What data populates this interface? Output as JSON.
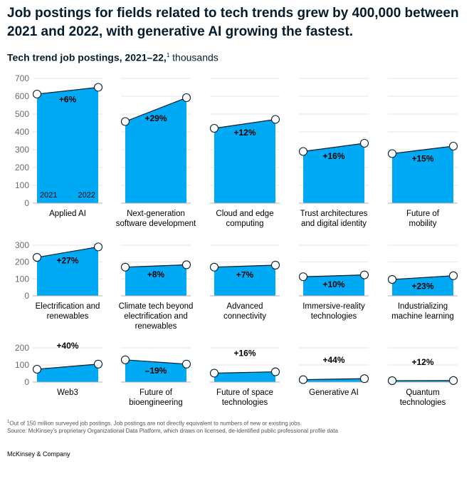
{
  "title": "Job postings for fields related to tech trends grew by 400,000 between 2021 and 2022, with generative AI growing the fastest.",
  "subtitle": {
    "bold": "Tech trend job postings, 2021–22,",
    "sup": "1",
    "unit": " thousands"
  },
  "footnote": {
    "sup": "1",
    "note": "Out of 150 million surveyed job postings. Job postings are not directly equivalent to numbers of new or existing jobs.",
    "source": "Source: McKinsey’s proprietary Organizational Data Platform, which draws on licensed, de-identified public professional profile data"
  },
  "brand": "McKinsey & Company",
  "colors": {
    "fill": "#00a9f4",
    "line": "#051c2c",
    "grid": "#e6e6e6",
    "axis": "#b0b0b0"
  },
  "chart_data": {
    "type": "area",
    "x": [
      "2021",
      "2022"
    ],
    "rows": [
      {
        "yticks": [
          0,
          100,
          200,
          300,
          400,
          500,
          600,
          700
        ],
        "ylim": [
          0,
          700
        ]
      },
      {
        "yticks": [
          0,
          100,
          200,
          300
        ],
        "ylim": [
          0,
          300
        ]
      },
      {
        "yticks": [
          0,
          100,
          200
        ],
        "ylim": [
          0,
          200
        ]
      }
    ],
    "panels": [
      {
        "row": 0,
        "col": 0,
        "label": [
          "Applied AI"
        ],
        "values": [
          612,
          650
        ],
        "change": "+6%",
        "show_years": true
      },
      {
        "row": 0,
        "col": 1,
        "label": [
          "Next-generation",
          "software development"
        ],
        "values": [
          458,
          592
        ],
        "change": "+29%"
      },
      {
        "row": 0,
        "col": 2,
        "label": [
          "Cloud and edge",
          "computing"
        ],
        "values": [
          420,
          470
        ],
        "change": "+12%"
      },
      {
        "row": 0,
        "col": 3,
        "label": [
          "Trust architectures",
          "and digital identity"
        ],
        "values": [
          290,
          336
        ],
        "change": "+16%"
      },
      {
        "row": 0,
        "col": 4,
        "label": [
          "Future of",
          "mobility"
        ],
        "values": [
          278,
          320
        ],
        "change": "+15%"
      },
      {
        "row": 1,
        "col": 0,
        "label": [
          "Electrification and",
          "renewables"
        ],
        "values": [
          228,
          290
        ],
        "change": "+27%"
      },
      {
        "row": 1,
        "col": 1,
        "label": [
          "Climate tech beyond",
          "electrification and",
          "renewables"
        ],
        "values": [
          170,
          184
        ],
        "change": "+8%"
      },
      {
        "row": 1,
        "col": 2,
        "label": [
          "Advanced",
          "connectivity"
        ],
        "values": [
          170,
          182
        ],
        "change": "+7%"
      },
      {
        "row": 1,
        "col": 3,
        "label": [
          "Immersive-reality",
          "technologies"
        ],
        "values": [
          113,
          124
        ],
        "change": "+10%"
      },
      {
        "row": 1,
        "col": 4,
        "label": [
          "Industrializing",
          "machine learning"
        ],
        "values": [
          97,
          119
        ],
        "change": "+23%"
      },
      {
        "row": 2,
        "col": 0,
        "label": [
          "Web3"
        ],
        "values": [
          75,
          105
        ],
        "change": "+40%",
        "label_above": true
      },
      {
        "row": 2,
        "col": 1,
        "label": [
          "Future of",
          "bioengineering"
        ],
        "values": [
          130,
          105
        ],
        "change": "–19%"
      },
      {
        "row": 2,
        "col": 2,
        "label": [
          "Future of space",
          "technologies"
        ],
        "values": [
          52,
          60
        ],
        "change": "+16%",
        "label_above": true
      },
      {
        "row": 2,
        "col": 3,
        "label": [
          "Generative AI"
        ],
        "values": [
          14,
          20
        ],
        "change": "+44%",
        "label_above": true
      },
      {
        "row": 2,
        "col": 4,
        "label": [
          "Quantum",
          "technologies"
        ],
        "values": [
          8,
          9
        ],
        "change": "+12%",
        "label_above": true
      }
    ]
  }
}
